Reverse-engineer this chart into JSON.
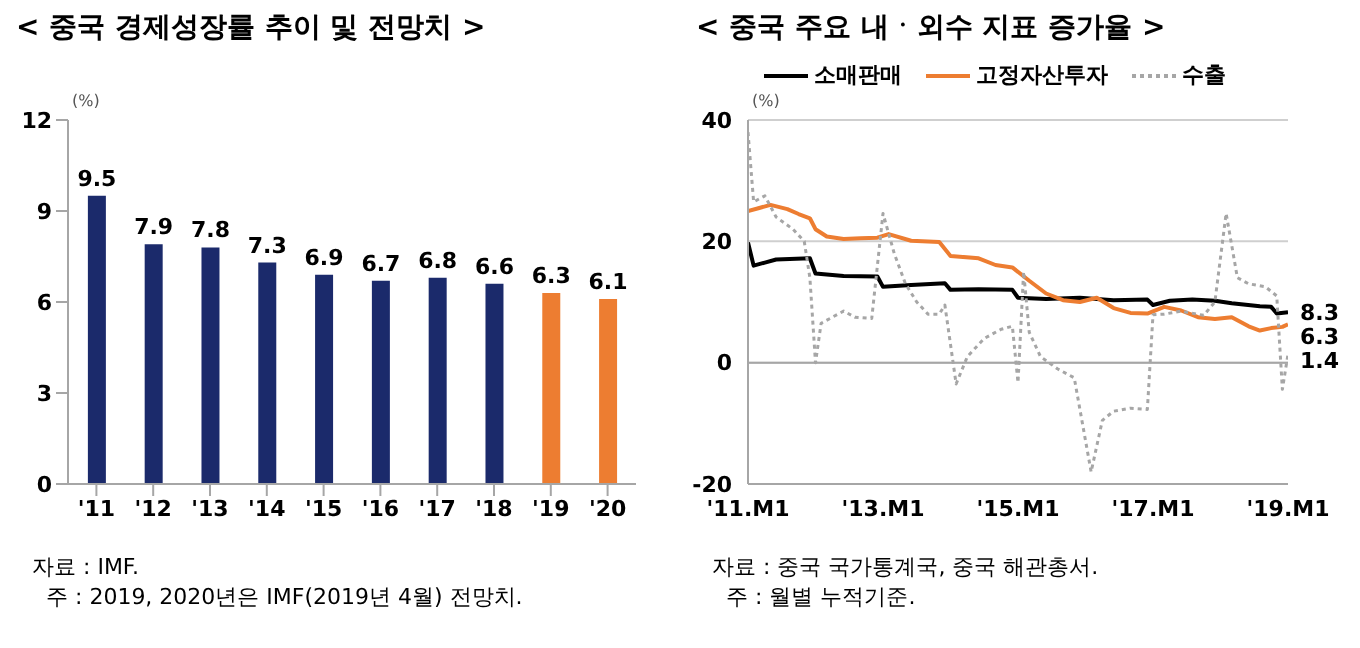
{
  "chart_data": [
    {
      "type": "bar",
      "title": "< 중국 경제성장률 추이 및 전망치 >",
      "ylabel": "(%)",
      "categories": [
        "'11",
        "'12",
        "'13",
        "'14",
        "'15",
        "'16",
        "'17",
        "'18",
        "'19",
        "'20"
      ],
      "values": [
        9.5,
        7.9,
        7.8,
        7.3,
        6.9,
        6.7,
        6.8,
        6.6,
        6.3,
        6.1
      ],
      "colors": [
        "#1b2a6b",
        "#1b2a6b",
        "#1b2a6b",
        "#1b2a6b",
        "#1b2a6b",
        "#1b2a6b",
        "#1b2a6b",
        "#1b2a6b",
        "#ed7d31",
        "#ed7d31"
      ],
      "ylim": [
        0,
        12
      ],
      "yticks": [
        0,
        3,
        6,
        9,
        12
      ],
      "data_labels": true,
      "grid": false,
      "annotations": [
        "자료 : IMF.",
        "  주 : 2019, 2020년은 IMF(2019년 4월) 전망치."
      ]
    },
    {
      "type": "line",
      "title": "< 중국 주요 내ㆍ외수 지표 증가율 >",
      "ylabel": "(%)",
      "series": [
        {
          "name": "소매판매",
          "color": "#000000",
          "line_style": "solid",
          "x": [
            "2011-01",
            "2011-02",
            "2011-04",
            "2011-06",
            "2011-12",
            "2012-01",
            "2012-06",
            "2012-12",
            "2013-01",
            "2013-06",
            "2013-12",
            "2014-01",
            "2014-06",
            "2014-12",
            "2015-01",
            "2015-06",
            "2015-12",
            "2016-06",
            "2016-12",
            "2017-01",
            "2017-04",
            "2017-08",
            "2017-12",
            "2018-03",
            "2018-08",
            "2018-10",
            "2018-11",
            "2019-01"
          ],
          "values": [
            19.8,
            16.0,
            16.5,
            17.0,
            17.2,
            14.7,
            14.3,
            14.2,
            12.5,
            12.8,
            13.1,
            12.0,
            12.1,
            12.0,
            10.7,
            10.5,
            10.7,
            10.3,
            10.4,
            9.5,
            10.2,
            10.4,
            10.2,
            9.8,
            9.3,
            9.2,
            8.1,
            8.3
          ],
          "value_labels": [
            null,
            null,
            null,
            null,
            null,
            null,
            null,
            null,
            null,
            null,
            null,
            null,
            null,
            null,
            null,
            null,
            null,
            null,
            null,
            null,
            null,
            null,
            null,
            null,
            null,
            null,
            null,
            "8.3"
          ]
        },
        {
          "name": "고정자산투자",
          "color": "#ed7d31",
          "line_style": "solid",
          "x": [
            "2011-01",
            "2011-03",
            "2011-05",
            "2011-08",
            "2011-10",
            "2011-12",
            "2012-01",
            "2012-03",
            "2012-06",
            "2012-09",
            "2012-12",
            "2013-02",
            "2013-06",
            "2013-11",
            "2014-01",
            "2014-06",
            "2014-09",
            "2014-12",
            "2015-03",
            "2015-06",
            "2015-09",
            "2015-12",
            "2016-03",
            "2016-06",
            "2016-09",
            "2016-12",
            "2017-03",
            "2017-06",
            "2017-09",
            "2017-12",
            "2018-03",
            "2018-06",
            "2018-08",
            "2018-10",
            "2018-12",
            "2019-01"
          ],
          "values": [
            25.0,
            25.5,
            26.0,
            25.3,
            24.5,
            23.8,
            22.0,
            20.8,
            20.4,
            20.5,
            20.6,
            21.2,
            20.1,
            19.9,
            17.6,
            17.2,
            16.1,
            15.7,
            13.5,
            11.4,
            10.3,
            10.0,
            10.7,
            9.0,
            8.2,
            8.1,
            9.2,
            8.6,
            7.5,
            7.2,
            7.5,
            6.0,
            5.3,
            5.7,
            5.9,
            6.3
          ],
          "value_labels": [
            null,
            null,
            null,
            null,
            null,
            null,
            null,
            null,
            null,
            null,
            null,
            null,
            null,
            null,
            null,
            null,
            null,
            null,
            null,
            null,
            null,
            null,
            null,
            null,
            null,
            null,
            null,
            null,
            null,
            null,
            null,
            null,
            null,
            null,
            null,
            "6.3"
          ]
        },
        {
          "name": "수출",
          "color": "#a6a6a6",
          "line_style": "dotted",
          "x": [
            "2011-01",
            "2011-02",
            "2011-04",
            "2011-06",
            "2011-09",
            "2011-11",
            "2011-12",
            "2012-01",
            "2012-02",
            "2012-04",
            "2012-06",
            "2012-08",
            "2012-11",
            "2013-01",
            "2013-03",
            "2013-05",
            "2013-07",
            "2013-09",
            "2013-11",
            "2013-12",
            "2014-02",
            "2014-04",
            "2014-07",
            "2014-10",
            "2014-12",
            "2015-01",
            "2015-02",
            "2015-03",
            "2015-05",
            "2015-08",
            "2015-11",
            "2016-02",
            "2016-04",
            "2016-06",
            "2016-09",
            "2016-12",
            "2017-01",
            "2017-03",
            "2017-06",
            "2017-10",
            "2017-12",
            "2018-02",
            "2018-04",
            "2018-06",
            "2018-09",
            "2018-11",
            "2018-12",
            "2019-01"
          ],
          "values": [
            38.0,
            26.5,
            27.5,
            24.0,
            22.0,
            20.0,
            14.0,
            0.0,
            6.5,
            7.5,
            8.5,
            7.5,
            7.3,
            24.6,
            18.0,
            13.0,
            10.0,
            8.0,
            8.0,
            9.5,
            -3.5,
            1.0,
            4.0,
            5.5,
            6.0,
            -3.3,
            15.0,
            5.0,
            1.0,
            -1.0,
            -2.5,
            -18.0,
            -9.5,
            -8.0,
            -7.5,
            -7.7,
            7.9,
            8.0,
            8.5,
            7.8,
            10.0,
            24.6,
            14.0,
            13.0,
            12.5,
            11.0,
            -4.4,
            1.4
          ],
          "value_labels": [
            null,
            null,
            null,
            null,
            null,
            null,
            null,
            null,
            null,
            null,
            null,
            null,
            null,
            null,
            null,
            null,
            null,
            null,
            null,
            null,
            null,
            null,
            null,
            null,
            null,
            null,
            null,
            null,
            null,
            null,
            null,
            null,
            null,
            null,
            null,
            null,
            null,
            null,
            null,
            null,
            null,
            null,
            null,
            null,
            null,
            null,
            null,
            "1.4"
          ]
        }
      ],
      "xlim": [
        "2011-01",
        "2019-01"
      ],
      "xticks": [
        {
          "value": "2011-01",
          "label": "'11.M1"
        },
        {
          "value": "2013-01",
          "label": "'13.M1"
        },
        {
          "value": "2015-01",
          "label": "'15.M1"
        },
        {
          "value": "2017-01",
          "label": "'17.M1"
        },
        {
          "value": "2019-01",
          "label": "'19.M1"
        }
      ],
      "ylim": [
        -20,
        40
      ],
      "yticks": [
        -20,
        0,
        20,
        40
      ],
      "grid": "y",
      "legend": "top",
      "ref_lines": [
        {
          "axis": "y",
          "value": 0,
          "color": "#a6a6a6"
        }
      ],
      "annotations": [
        "자료 : 중국 국가통계국, 중국 해관총서.",
        "  주 : 월별 누적기준."
      ]
    }
  ]
}
